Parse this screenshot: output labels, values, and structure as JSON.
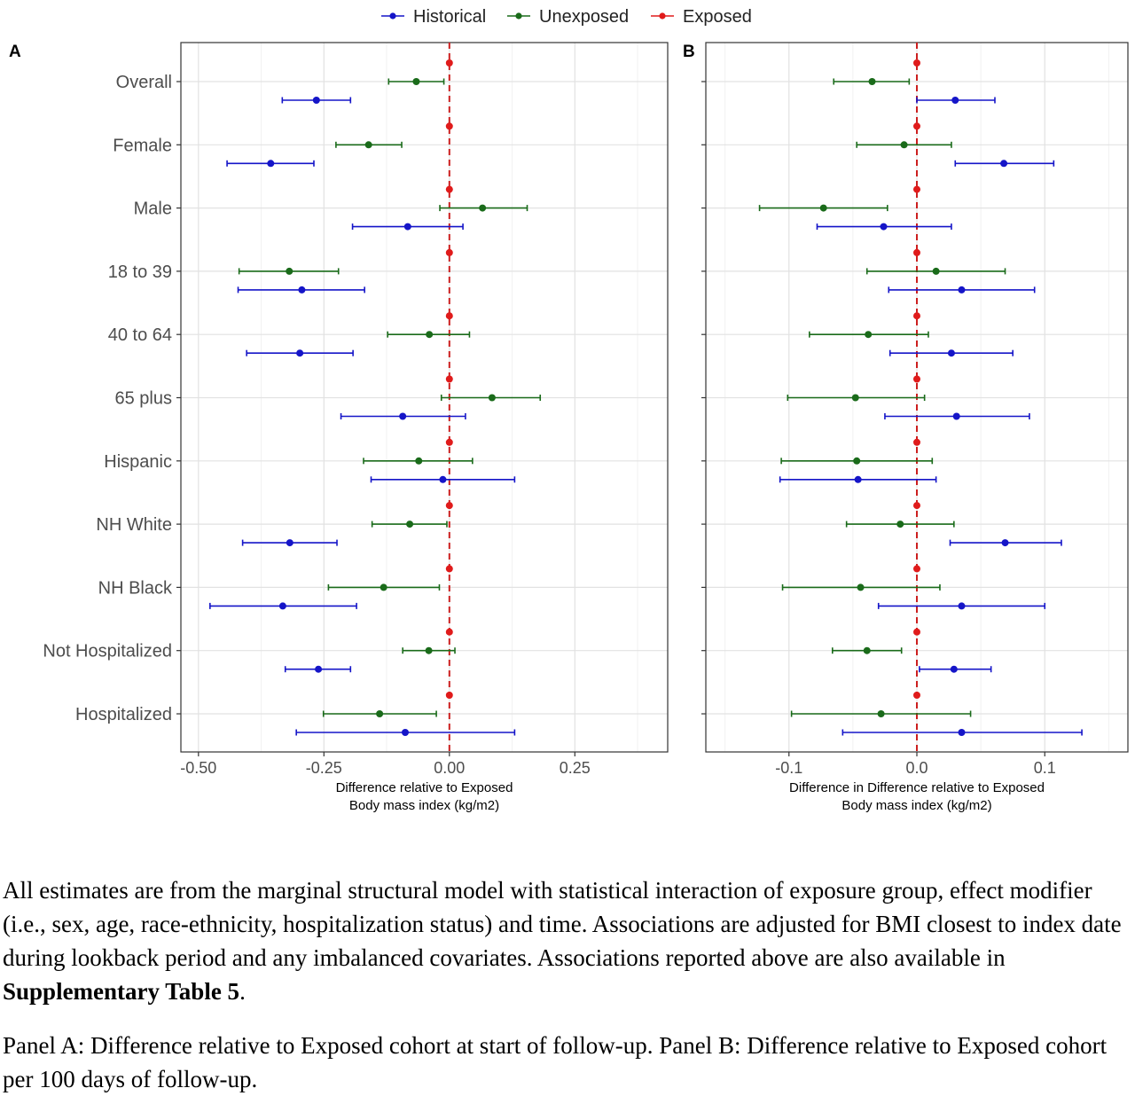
{
  "legend": [
    {
      "name": "Historical",
      "color": "#1515c8"
    },
    {
      "name": "Unexposed",
      "color": "#1a6b1a"
    },
    {
      "name": "Exposed",
      "color": "#e01b1b"
    }
  ],
  "categories": [
    "Overall",
    "Female",
    "Male",
    "18 to 39",
    "40 to 64",
    "65 plus",
    "Hispanic",
    "NH White",
    "NH Black",
    "Not Hospitalized",
    "Hospitalized"
  ],
  "chart_data": [
    {
      "type": "scatter",
      "panel_label": "A",
      "xlabel_line1": "Difference relative to Exposed",
      "xlabel_line2": "Body mass index (kg/m2)",
      "xlim": [
        -0.535,
        0.435
      ],
      "ticks": [
        -0.5,
        -0.25,
        0.0,
        0.25
      ],
      "tick_labels": [
        "-0.50",
        "-0.25",
        "0.00",
        "0.25"
      ],
      "minor_ticks": [
        -0.375,
        -0.125,
        0.125,
        0.375
      ],
      "reference_line": 0,
      "grid": true,
      "series": [
        {
          "name": "Exposed",
          "estimates": [
            0,
            0,
            0,
            0,
            0,
            0,
            0,
            0,
            0,
            0,
            0
          ],
          "lower": [
            0,
            0,
            0,
            0,
            0,
            0,
            0,
            0,
            0,
            0,
            0
          ],
          "upper": [
            0,
            0,
            0,
            0,
            0,
            0,
            0,
            0,
            0,
            0,
            0
          ]
        },
        {
          "name": "Unexposed",
          "estimates": [
            -0.066,
            -0.161,
            0.066,
            -0.319,
            -0.04,
            0.085,
            -0.061,
            -0.079,
            -0.131,
            -0.041,
            -0.139
          ],
          "lower": [
            -0.121,
            -0.226,
            -0.019,
            -0.419,
            -0.123,
            -0.016,
            -0.171,
            -0.154,
            -0.241,
            -0.093,
            -0.251
          ],
          "upper": [
            -0.011,
            -0.095,
            0.155,
            -0.221,
            0.04,
            0.181,
            0.046,
            -0.005,
            -0.02,
            0.011,
            -0.026
          ]
        },
        {
          "name": "Historical",
          "estimates": [
            -0.265,
            -0.356,
            -0.083,
            -0.294,
            -0.298,
            -0.093,
            -0.013,
            -0.318,
            -0.332,
            -0.261,
            -0.088
          ],
          "lower": [
            -0.333,
            -0.443,
            -0.193,
            -0.421,
            -0.404,
            -0.216,
            -0.156,
            -0.412,
            -0.477,
            -0.327,
            -0.305
          ],
          "upper": [
            -0.197,
            -0.27,
            0.027,
            -0.169,
            -0.192,
            0.032,
            0.13,
            -0.224,
            -0.185,
            -0.197,
            0.13
          ]
        }
      ]
    },
    {
      "type": "scatter",
      "panel_label": "B",
      "xlabel_line1": "Difference in Difference relative to Exposed",
      "xlabel_line2": "Body mass index (kg/m2)",
      "xlim": [
        -0.165,
        0.165
      ],
      "ticks": [
        -0.1,
        0.0,
        0.1
      ],
      "tick_labels": [
        "-0.1",
        "0.0",
        "0.1"
      ],
      "minor_ticks": [
        -0.15,
        -0.05,
        0.05,
        0.15
      ],
      "reference_line": 0,
      "grid": true,
      "series": [
        {
          "name": "Exposed",
          "estimates": [
            0,
            0,
            0,
            0,
            0,
            0,
            0,
            0,
            0,
            0,
            0
          ],
          "lower": [
            0,
            0,
            0,
            0,
            0,
            0,
            0,
            0,
            0,
            0,
            0
          ],
          "upper": [
            0,
            0,
            0,
            0,
            0,
            0,
            0,
            0,
            0,
            0,
            0
          ]
        },
        {
          "name": "Unexposed",
          "estimates": [
            -0.035,
            -0.01,
            -0.073,
            0.015,
            -0.038,
            -0.048,
            -0.047,
            -0.013,
            -0.044,
            -0.039,
            -0.028
          ],
          "lower": [
            -0.065,
            -0.047,
            -0.123,
            -0.039,
            -0.084,
            -0.101,
            -0.106,
            -0.055,
            -0.105,
            -0.066,
            -0.098
          ],
          "upper": [
            -0.006,
            0.027,
            -0.023,
            0.069,
            0.009,
            0.006,
            0.012,
            0.029,
            0.018,
            -0.012,
            0.042
          ]
        },
        {
          "name": "Historical",
          "estimates": [
            0.03,
            0.068,
            -0.026,
            0.035,
            0.027,
            0.031,
            -0.046,
            0.069,
            0.035,
            0.029,
            0.035
          ],
          "lower": [
            0.0,
            0.03,
            -0.078,
            -0.022,
            -0.021,
            -0.025,
            -0.107,
            0.026,
            -0.03,
            0.002,
            -0.058
          ],
          "upper": [
            0.061,
            0.107,
            0.027,
            0.092,
            0.075,
            0.088,
            0.015,
            0.113,
            0.1,
            0.058,
            0.129
          ]
        }
      ]
    }
  ],
  "caption": {
    "p1_text": "All estimates are from the marginal structural model with statistical interaction of exposure group, effect modifier (i.e., sex, age, race-ethnicity, hospitalization status) and time. Associations are adjusted for BMI closest to index date during lookback period and any imbalanced covariates. Associations reported above are also available in ",
    "p1_bold": "Supplementary Table 5",
    "p1_end": ".",
    "p2_text": "Panel A: Difference relative to Exposed cohort at start of follow-up. Panel B: Difference relative to Exposed cohort per 100 days of follow-up."
  }
}
